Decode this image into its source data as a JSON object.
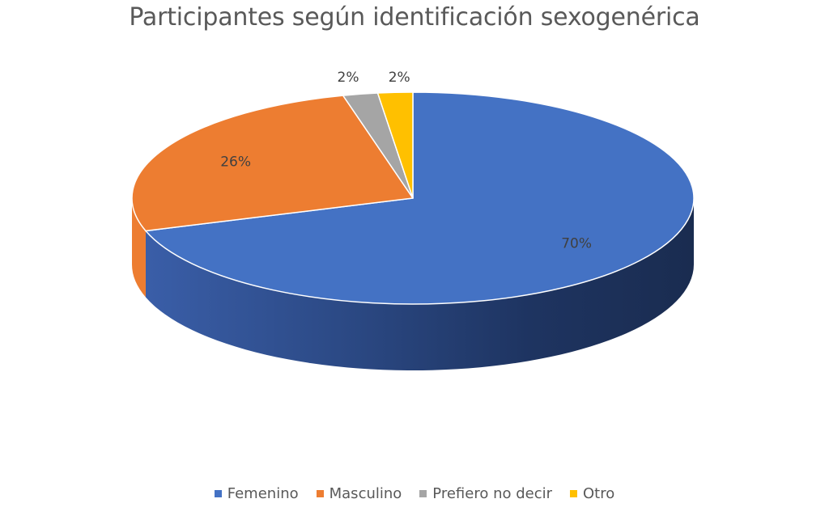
{
  "chart_data": {
    "type": "pie",
    "title": "Participantes según identificación sexogenérica",
    "categories": [
      "Femenino",
      "Masculino",
      "Prefiero no decir",
      "Otro"
    ],
    "values": [
      70,
      26,
      2,
      2
    ],
    "labels": [
      "70%",
      "26%",
      "2%",
      "2%"
    ],
    "colors": [
      "#4472C4",
      "#ED7D31",
      "#A5A5A5",
      "#FFC000"
    ],
    "legend_position": "bottom",
    "style": "3d"
  }
}
